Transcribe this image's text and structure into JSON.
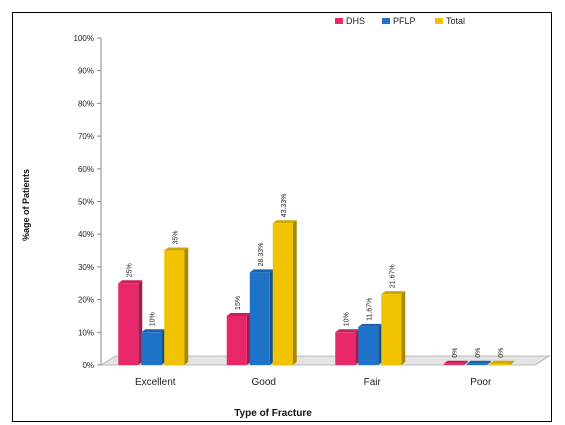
{
  "chart_data": {
    "type": "bar",
    "title": "",
    "xlabel": "Type of Fracture",
    "ylabel": "%age of Patients",
    "ylim": [
      0,
      100
    ],
    "yticks": [
      "0%",
      "10%",
      "20%",
      "30%",
      "40%",
      "50%",
      "60%",
      "70%",
      "80%",
      "90%",
      "100%"
    ],
    "categories": [
      "Excellent",
      "Good",
      "Fair",
      "Poor"
    ],
    "legend_position": "top-right",
    "grid": false,
    "series": [
      {
        "name": "DHS",
        "color": "#e8266a",
        "values": [
          25,
          15,
          10,
          0
        ],
        "labels": [
          "25%",
          "15%",
          "10%",
          "0%"
        ]
      },
      {
        "name": "PFLP",
        "color": "#1e73c8",
        "values": [
          10,
          28.33,
          11.67,
          0
        ],
        "labels": [
          "10%",
          "28.33%",
          "11.67%",
          "0%"
        ]
      },
      {
        "name": "Total",
        "color": "#f2c300",
        "values": [
          35,
          43.33,
          21.67,
          0
        ],
        "labels": [
          "35%",
          "43.33%",
          "21.67%",
          "0%"
        ]
      }
    ]
  }
}
